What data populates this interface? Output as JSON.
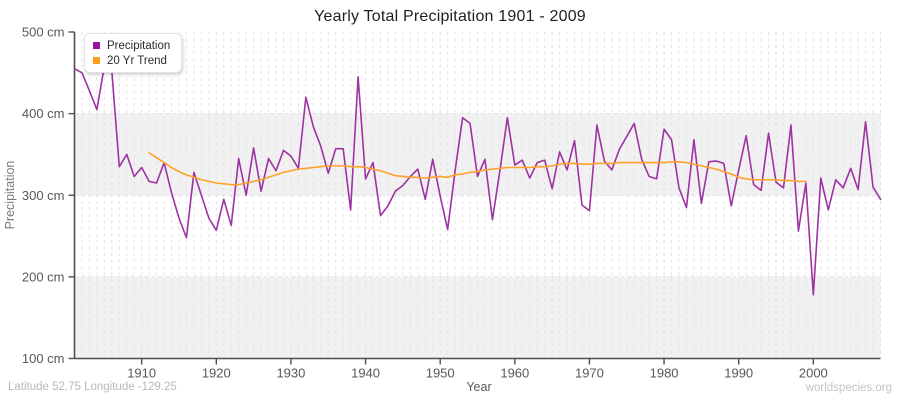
{
  "page": {
    "title": "Yearly Total Precipitation 1901 - 2009",
    "footer_left": "Latitude 52.75 Longitude -129.25",
    "footer_right": "worldspecies.org"
  },
  "legend": {
    "position": "top-left",
    "items": [
      {
        "label": "Precipitation",
        "color": "#9B129E"
      },
      {
        "label": "20 Yr Trend",
        "color": "#FF9E1B"
      }
    ]
  },
  "chart_data": {
    "type": "line",
    "title": "Yearly Total Precipitation 1901 - 2009",
    "xlabel": "Year",
    "ylabel": "Precipitation",
    "y_unit": "cm",
    "x_range": [
      1901,
      2009
    ],
    "ylim": [
      100,
      500
    ],
    "x_ticks": [
      1910,
      1920,
      1930,
      1940,
      1950,
      1960,
      1970,
      1980,
      1990,
      2000
    ],
    "y_ticks": [
      {
        "value": 500,
        "label": "500 cm"
      },
      {
        "value": 400,
        "label": "400 cm"
      },
      {
        "value": 300,
        "label": "300 cm"
      },
      {
        "value": 200,
        "label": "200 cm"
      },
      {
        "value": 100,
        "label": "100 cm"
      }
    ],
    "grid": {
      "vertical_dashed_every_year": true,
      "horizontal_dashed_at": [
        200,
        300,
        400
      ],
      "shaded_bands": [
        [
          100,
          200
        ],
        [
          300,
          400
        ]
      ],
      "band_color": "#f1f1f2",
      "grid_color": "#e2e2e5"
    },
    "series": [
      {
        "name": "Precipitation",
        "color": "#9D32A2",
        "start_year": 1901,
        "values": [
          455,
          450,
          428,
          405,
          458,
          452,
          335,
          350,
          323,
          334,
          317,
          315,
          340,
          303,
          272,
          248,
          328,
          300,
          272,
          257,
          295,
          263,
          345,
          300,
          358,
          305,
          345,
          330,
          355,
          348,
          333,
          420,
          384,
          360,
          327,
          357,
          357,
          282,
          445,
          320,
          340,
          275,
          287,
          305,
          312,
          323,
          332,
          295,
          344,
          299,
          258,
          330,
          395,
          388,
          323,
          344,
          270,
          330,
          395,
          337,
          343,
          321,
          340,
          343,
          308,
          353,
          331,
          367,
          288,
          281,
          386,
          342,
          331,
          356,
          372,
          388,
          344,
          323,
          320,
          381,
          368,
          309,
          285,
          368,
          290,
          341,
          342,
          339,
          287,
          331,
          373,
          313,
          306,
          376,
          316,
          309,
          386,
          256,
          315,
          178,
          321,
          282,
          319,
          309,
          333,
          307,
          390,
          310,
          295
        ]
      },
      {
        "name": "20 Yr Trend",
        "color": "#FFA129",
        "start_year": 1911,
        "values": [
          352,
          346,
          340,
          334,
          329,
          325,
          322,
          319,
          317,
          315,
          314,
          313,
          313,
          315,
          317,
          319,
          322,
          325,
          328,
          330,
          332,
          333,
          334,
          335,
          336,
          336,
          336,
          335,
          335,
          334,
          332,
          330,
          327,
          324,
          323,
          322,
          322,
          321,
          322,
          323,
          322,
          325,
          326,
          328,
          329,
          331,
          332,
          333,
          334,
          334,
          334,
          334,
          335,
          335,
          336,
          338,
          339,
          339,
          338,
          338,
          339,
          339,
          339,
          340,
          340,
          340,
          340,
          340,
          340,
          340,
          341,
          341,
          340,
          338,
          336,
          334,
          332,
          329,
          326,
          322,
          320,
          319,
          319,
          319,
          319,
          318,
          318,
          317,
          317
        ]
      }
    ]
  }
}
